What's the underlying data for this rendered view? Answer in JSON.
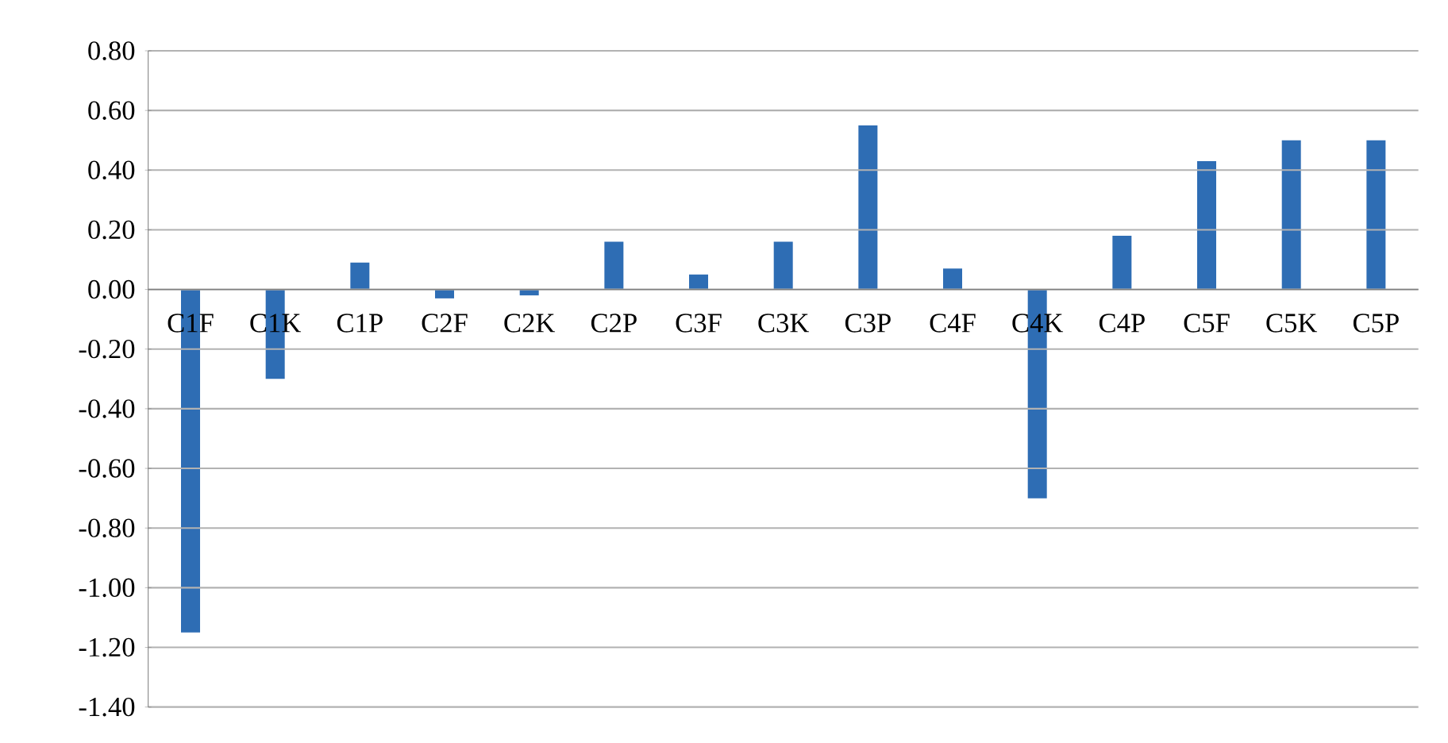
{
  "chart_data": {
    "type": "bar",
    "categories": [
      "C1F",
      "C1K",
      "C1P",
      "C2F",
      "C2K",
      "C2P",
      "C3F",
      "C3K",
      "C3P",
      "C4F",
      "C4K",
      "C4P",
      "C5F",
      "C5K",
      "C5P"
    ],
    "values": [
      -1.15,
      -0.3,
      0.09,
      -0.03,
      -0.02,
      0.16,
      0.05,
      0.16,
      0.55,
      0.07,
      -0.7,
      0.18,
      0.43,
      0.5,
      0.5
    ],
    "color": "#2e6db4",
    "ylim": [
      -1.4,
      0.8
    ],
    "yticks": [
      {
        "value": -1.4,
        "label": "-1.40"
      },
      {
        "value": -1.2,
        "label": "-1.20"
      },
      {
        "value": -1.0,
        "label": "-1.00"
      },
      {
        "value": -0.8,
        "label": "-0.80"
      },
      {
        "value": -0.6,
        "label": "-0.60"
      },
      {
        "value": -0.4,
        "label": "-0.40"
      },
      {
        "value": -0.2,
        "label": "-0.20"
      },
      {
        "value": 0,
        "label": "0.00"
      },
      {
        "value": 0.2,
        "label": "0.20"
      },
      {
        "value": 0.4,
        "label": "0.40"
      },
      {
        "value": 0.6,
        "label": "0.60"
      },
      {
        "value": 0.8,
        "label": "0.80"
      }
    ],
    "grid": "y"
  }
}
